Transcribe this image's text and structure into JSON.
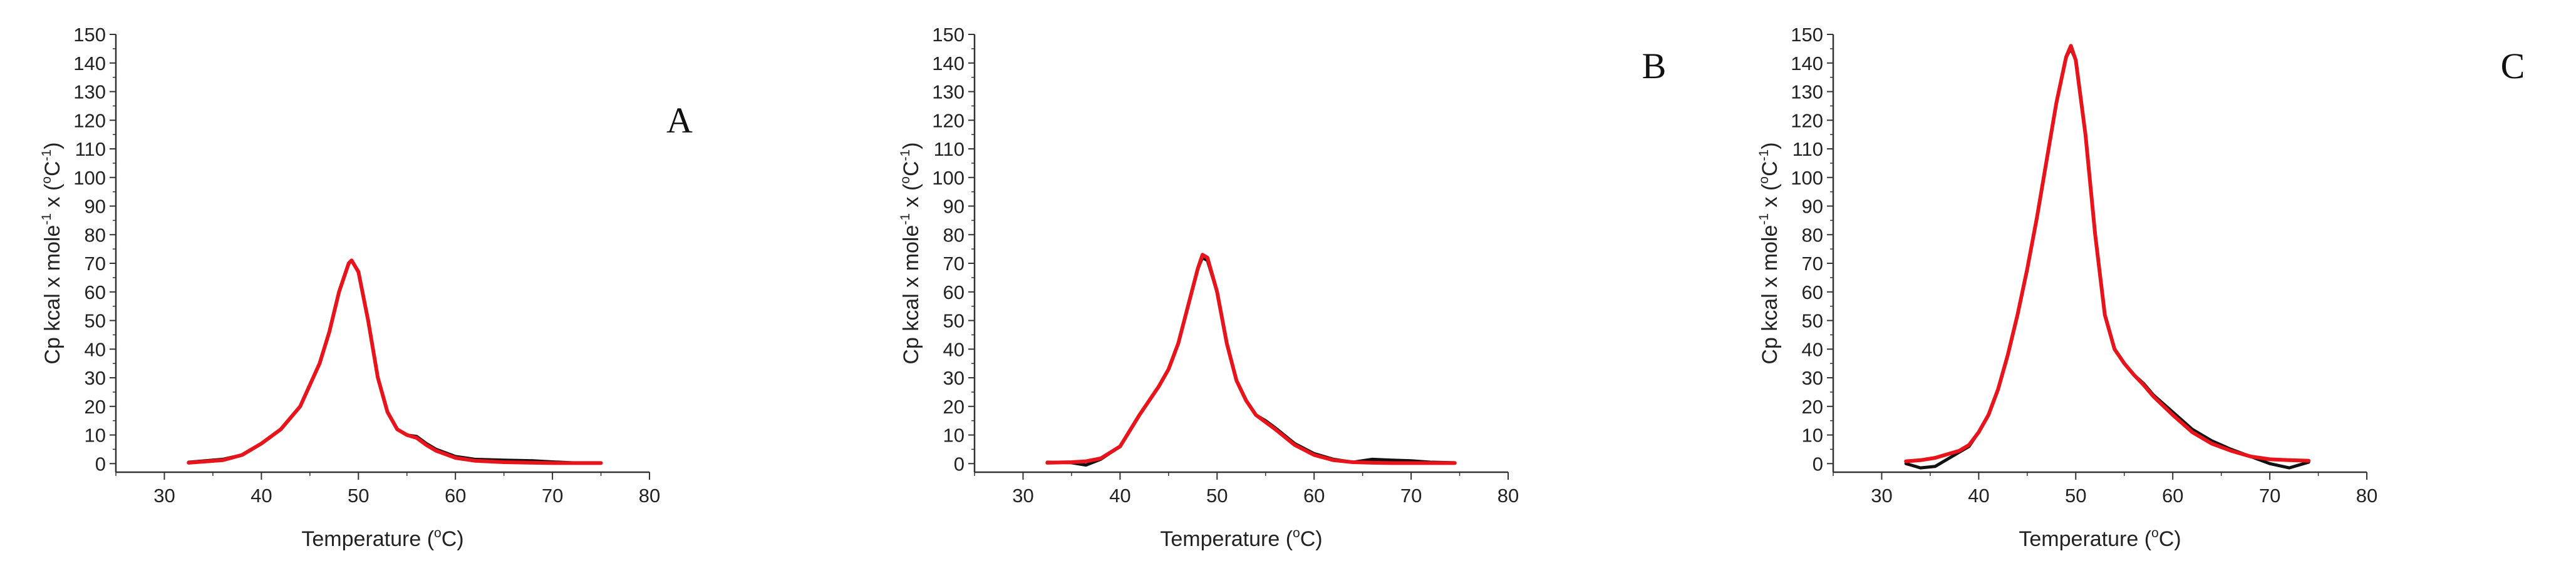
{
  "colors": {
    "data": "#111111",
    "fit": "#e8141b",
    "axis": "#333333"
  },
  "chart_data": [
    {
      "type": "line",
      "panel_label": "A",
      "xlabel_main": "Temperature (",
      "xlabel_sup": "o",
      "xlabel_tail": "C)",
      "ylabel_main": "Cp kcal x mole",
      "ylabel_sup1": "-1",
      "ylabel_mid": " x (",
      "ylabel_sup2": "o",
      "ylabel_mid2": "C",
      "ylabel_sup3": "-1",
      "ylabel_tail": ")",
      "xlim": [
        25,
        80
      ],
      "ylim": [
        -3,
        150
      ],
      "xticks": [
        30,
        40,
        50,
        60,
        70,
        80
      ],
      "yticks": [
        0,
        10,
        20,
        30,
        40,
        50,
        60,
        70,
        80,
        90,
        100,
        110,
        120,
        130,
        140,
        150
      ],
      "series": [
        {
          "role": "data",
          "x": [
            32.5,
            36,
            38,
            40,
            42,
            44,
            46,
            47,
            48,
            49,
            49.3,
            50,
            51,
            52,
            53,
            54,
            55,
            56,
            57,
            58,
            60,
            62,
            65,
            68,
            70,
            72,
            75
          ],
          "y": [
            0.5,
            1.5,
            3,
            7,
            12,
            20,
            35,
            46,
            60,
            70,
            71,
            67,
            50,
            30,
            18,
            12,
            10,
            9.5,
            7,
            5,
            2.5,
            1.5,
            1.2,
            1.0,
            0.6,
            0.3,
            0.2
          ]
        },
        {
          "role": "fit",
          "x": [
            32.5,
            36,
            38,
            40,
            42,
            44,
            46,
            47,
            48,
            49,
            49.3,
            50,
            51,
            52,
            53,
            54,
            55,
            56,
            57,
            58,
            60,
            62,
            65,
            68,
            70,
            72,
            75
          ],
          "y": [
            0.3,
            1.2,
            3,
            7,
            12,
            20,
            35,
            46,
            60,
            70,
            71,
            67,
            50,
            30,
            18,
            12,
            10,
            9,
            6.5,
            4.5,
            2,
            1,
            0.5,
            0.3,
            0.2,
            0.2,
            0.2
          ]
        }
      ]
    },
    {
      "type": "line",
      "panel_label": "B",
      "xlabel_main": "Temperature (",
      "xlabel_sup": "o",
      "xlabel_tail": "C)",
      "ylabel_main": "Cp kcal x mole",
      "ylabel_sup1": "-1",
      "ylabel_mid": " x (",
      "ylabel_sup2": "o",
      "ylabel_mid2": "C",
      "ylabel_sup3": "-1",
      "ylabel_tail": ")",
      "xlim": [
        25,
        80
      ],
      "ylim": [
        -3,
        150
      ],
      "xticks": [
        30,
        40,
        50,
        60,
        70,
        80
      ],
      "yticks": [
        0,
        10,
        20,
        30,
        40,
        50,
        60,
        70,
        80,
        90,
        100,
        110,
        120,
        130,
        140,
        150
      ],
      "series": [
        {
          "role": "data",
          "x": [
            32.5,
            35,
            36.5,
            38,
            40,
            42,
            44,
            45,
            46,
            47,
            48,
            48.5,
            49,
            50,
            51,
            52,
            53,
            54,
            55,
            56,
            58,
            60,
            62,
            64,
            66,
            68,
            70,
            72,
            74.5
          ],
          "y": [
            0.5,
            0.3,
            -0.5,
            1.5,
            6,
            17,
            27,
            33,
            42,
            55,
            68,
            72,
            71,
            60,
            42,
            29,
            22,
            17,
            15,
            12.5,
            7,
            3.5,
            1.5,
            0.5,
            1.5,
            1.2,
            1.0,
            0.5,
            0.3
          ]
        },
        {
          "role": "fit",
          "x": [
            32.5,
            35,
            36.5,
            38,
            40,
            42,
            44,
            45,
            46,
            47,
            48,
            48.5,
            49,
            50,
            51,
            52,
            53,
            54,
            55,
            56,
            58,
            60,
            62,
            64,
            66,
            68,
            70,
            72,
            74.5
          ],
          "y": [
            0.3,
            0.5,
            0.8,
            1.8,
            6,
            17,
            27,
            33,
            42,
            55,
            68,
            73,
            72,
            60,
            42,
            29,
            22,
            17,
            14.5,
            12,
            6.5,
            3,
            1.2,
            0.5,
            0.3,
            0.2,
            0.2,
            0.2,
            0.2
          ]
        }
      ]
    },
    {
      "type": "line",
      "panel_label": "C",
      "xlabel_main": "Temperature (",
      "xlabel_sup": "o",
      "xlabel_tail": "C)",
      "ylabel_main": "Cp kcal x mole",
      "ylabel_sup1": "-1",
      "ylabel_mid": " x (",
      "ylabel_sup2": "o",
      "ylabel_mid2": "C",
      "ylabel_sup3": "-1",
      "ylabel_tail": ")",
      "xlim": [
        25,
        80
      ],
      "ylim": [
        -3,
        150
      ],
      "xticks": [
        30,
        40,
        50,
        60,
        70,
        80
      ],
      "yticks": [
        0,
        10,
        20,
        30,
        40,
        50,
        60,
        70,
        80,
        90,
        100,
        110,
        120,
        130,
        140,
        150
      ],
      "series": [
        {
          "role": "data",
          "x": [
            32.5,
            34,
            35.5,
            37,
            38,
            39,
            40,
            41,
            42,
            43,
            44,
            45,
            46,
            47,
            48,
            49,
            49.5,
            50,
            51,
            52,
            53,
            54,
            55,
            56,
            57,
            58,
            60,
            62,
            64,
            66,
            68,
            70,
            72,
            74
          ],
          "y": [
            0,
            -1.5,
            -1,
            2,
            4,
            6,
            11,
            17,
            26,
            38,
            52,
            68,
            86,
            106,
            126,
            142,
            145,
            141,
            115,
            80,
            52,
            40,
            35,
            31,
            28,
            24,
            18,
            12,
            8,
            5,
            2.5,
            0,
            -1.5,
            0.5
          ]
        },
        {
          "role": "fit",
          "x": [
            32.5,
            34,
            35.5,
            37,
            38,
            39,
            40,
            41,
            42,
            43,
            44,
            45,
            46,
            47,
            48,
            49,
            49.5,
            50,
            51,
            52,
            53,
            54,
            55,
            56,
            57,
            58,
            60,
            62,
            64,
            66,
            68,
            70,
            72,
            74
          ],
          "y": [
            0.8,
            1.2,
            2,
            3.5,
            4.5,
            6.5,
            11,
            17,
            26,
            38,
            52,
            68,
            86,
            106,
            126,
            142,
            146,
            141,
            115,
            80,
            52,
            40,
            35,
            31,
            27.5,
            23.5,
            17,
            11,
            7,
            4.5,
            2.5,
            1.5,
            1.2,
            1.0
          ]
        }
      ]
    }
  ]
}
